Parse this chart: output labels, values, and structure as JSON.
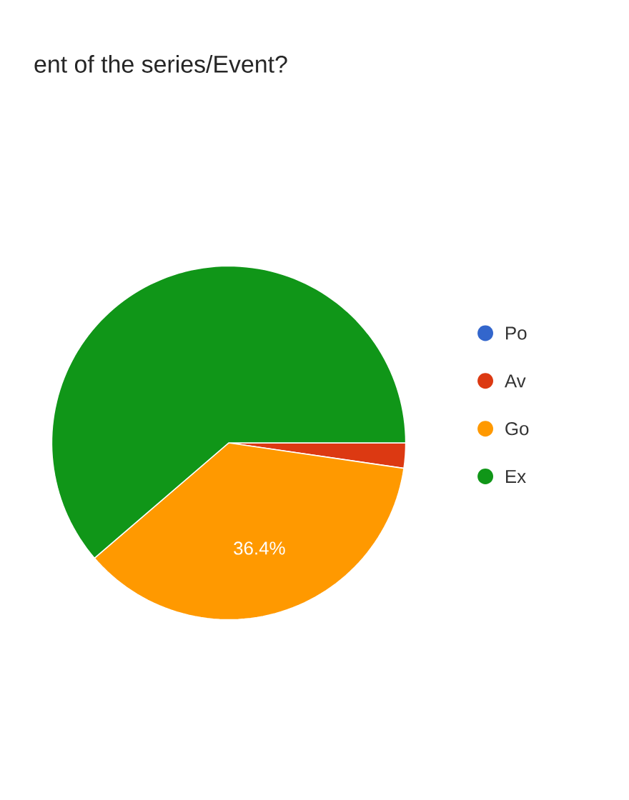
{
  "chart_data": {
    "type": "pie",
    "title": "ent of the series/Event?",
    "categories": [
      "Po",
      "Av",
      "Go",
      "Ex"
    ],
    "values": [
      0,
      2.3,
      36.4,
      61.3
    ],
    "colors": [
      "#3366cc",
      "#dc3912",
      "#ff9900",
      "#109618"
    ],
    "value_labels": [
      null,
      null,
      "36.4%",
      null
    ],
    "legend": "right"
  }
}
